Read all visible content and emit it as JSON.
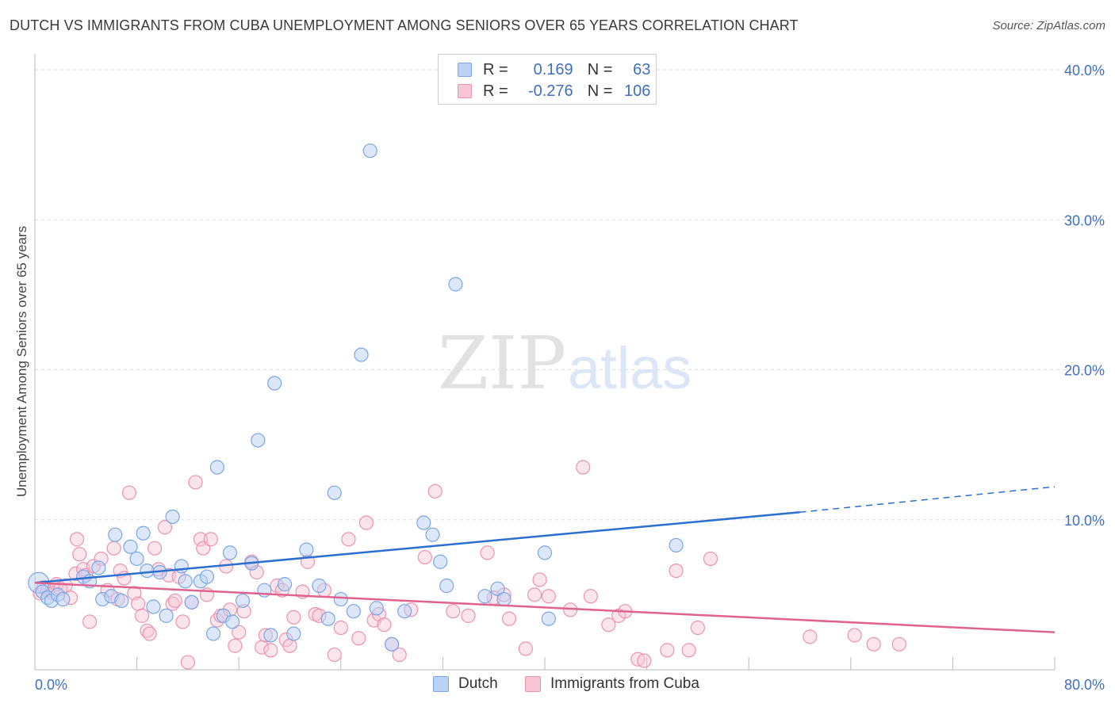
{
  "title": "DUTCH VS IMMIGRANTS FROM CUBA UNEMPLOYMENT AMONG SENIORS OVER 65 YEARS CORRELATION CHART",
  "source": "Source: ZipAtlas.com",
  "watermark": {
    "zip": "ZIP",
    "atlas": "atlas"
  },
  "colors": {
    "dutch_fill": "#b9d2f5",
    "dutch_stroke": "#7aa5e6",
    "dutch_line": "#2b6fd1",
    "cuba_fill": "#f7c6d5",
    "cuba_stroke": "#eb92b0",
    "cuba_line": "#e0628f",
    "axis_text": "#3f6fbf",
    "grid": "#dddddd"
  },
  "legend": {
    "rows": [
      {
        "r_label": "R =",
        "r_value": "0.169",
        "n_label": "N =",
        "n_value": "63",
        "series": "Dutch"
      },
      {
        "r_label": "R =",
        "r_value": "-0.276",
        "n_label": "N =",
        "n_value": "106",
        "series": "Immigrants from Cuba"
      }
    ]
  },
  "chart_data": {
    "type": "scatter",
    "title": "DUTCH VS IMMIGRANTS FROM CUBA UNEMPLOYMENT AMONG SENIORS OVER 65 YEARS CORRELATION CHART",
    "xlabel": "",
    "ylabel": "Unemployment Among Seniors over 65 years",
    "xlim": [
      0,
      80
    ],
    "ylim": [
      0,
      40
    ],
    "x_tick_labels": [
      "0.0%",
      "80.0%"
    ],
    "y_tick_values": [
      10,
      20,
      30,
      40
    ],
    "y_tick_labels": [
      "10.0%",
      "20.0%",
      "30.0%",
      "40.0%"
    ],
    "grid": true,
    "legend_position": "bottom",
    "series": [
      {
        "name": "Dutch",
        "trend": {
          "x0": 0,
          "y0": 5.8,
          "x1": 60,
          "y1": 10.5,
          "dashed_to_x": 80,
          "dashed_to_y": 12.2
        },
        "points": [
          [
            0.3,
            5.8
          ],
          [
            0.6,
            5.2
          ],
          [
            1.0,
            4.8
          ],
          [
            1.3,
            4.6
          ],
          [
            1.8,
            5.0
          ],
          [
            2.2,
            4.7
          ],
          [
            3.8,
            6.2
          ],
          [
            4.3,
            5.9
          ],
          [
            5.0,
            6.8
          ],
          [
            5.3,
            4.7
          ],
          [
            6.0,
            4.9
          ],
          [
            6.3,
            9.0
          ],
          [
            6.8,
            4.6
          ],
          [
            7.5,
            8.2
          ],
          [
            8.0,
            7.4
          ],
          [
            8.5,
            9.1
          ],
          [
            8.8,
            6.6
          ],
          [
            9.3,
            4.2
          ],
          [
            9.8,
            6.5
          ],
          [
            10.3,
            3.6
          ],
          [
            10.8,
            10.2
          ],
          [
            11.5,
            6.9
          ],
          [
            11.8,
            5.9
          ],
          [
            12.3,
            4.5
          ],
          [
            13.0,
            5.9
          ],
          [
            13.5,
            6.2
          ],
          [
            14.0,
            2.4
          ],
          [
            14.3,
            13.5
          ],
          [
            14.8,
            3.6
          ],
          [
            15.5,
            3.2
          ],
          [
            15.3,
            7.8
          ],
          [
            16.3,
            4.6
          ],
          [
            17.0,
            7.1
          ],
          [
            17.5,
            15.3
          ],
          [
            18.0,
            5.3
          ],
          [
            18.5,
            2.3
          ],
          [
            18.8,
            19.1
          ],
          [
            19.6,
            5.7
          ],
          [
            20.3,
            2.4
          ],
          [
            21.3,
            8.0
          ],
          [
            22.3,
            5.6
          ],
          [
            23.0,
            3.4
          ],
          [
            23.5,
            11.8
          ],
          [
            24.0,
            4.7
          ],
          [
            25.0,
            3.9
          ],
          [
            25.6,
            21.0
          ],
          [
            26.3,
            34.6
          ],
          [
            26.8,
            4.1
          ],
          [
            28.0,
            1.7
          ],
          [
            29.0,
            3.9
          ],
          [
            30.5,
            9.8
          ],
          [
            31.2,
            9.0
          ],
          [
            31.8,
            7.2
          ],
          [
            32.3,
            5.6
          ],
          [
            33.0,
            25.7
          ],
          [
            35.3,
            4.9
          ],
          [
            36.3,
            5.4
          ],
          [
            36.8,
            4.7
          ],
          [
            40.0,
            7.8
          ],
          [
            40.3,
            3.4
          ],
          [
            50.3,
            8.3
          ]
        ]
      },
      {
        "name": "Immigrants from Cuba",
        "trend": {
          "x0": 0,
          "y0": 5.8,
          "x1": 80,
          "y1": 2.5
        },
        "points": [
          [
            0.4,
            5.1
          ],
          [
            0.7,
            5.5
          ],
          [
            1.0,
            5.3
          ],
          [
            1.4,
            5.1
          ],
          [
            1.7,
            5.7
          ],
          [
            2.0,
            5.4
          ],
          [
            2.4,
            5.6
          ],
          [
            2.8,
            4.8
          ],
          [
            3.2,
            6.4
          ],
          [
            3.3,
            8.7
          ],
          [
            3.5,
            7.7
          ],
          [
            3.8,
            6.7
          ],
          [
            4.0,
            6.3
          ],
          [
            4.6,
            6.9
          ],
          [
            4.3,
            3.2
          ],
          [
            5.2,
            7.4
          ],
          [
            5.7,
            5.3
          ],
          [
            6.2,
            8.1
          ],
          [
            6.5,
            4.7
          ],
          [
            6.7,
            6.6
          ],
          [
            7.0,
            6.1
          ],
          [
            7.4,
            11.8
          ],
          [
            7.8,
            5.1
          ],
          [
            8.1,
            4.4
          ],
          [
            8.4,
            3.6
          ],
          [
            8.8,
            2.6
          ],
          [
            9.0,
            2.4
          ],
          [
            9.4,
            8.1
          ],
          [
            9.7,
            6.7
          ],
          [
            10.2,
            9.5
          ],
          [
            10.5,
            6.3
          ],
          [
            10.8,
            4.4
          ],
          [
            11.0,
            4.6
          ],
          [
            11.3,
            6.2
          ],
          [
            11.6,
            3.2
          ],
          [
            12.0,
            0.5
          ],
          [
            12.3,
            4.5
          ],
          [
            12.6,
            12.5
          ],
          [
            13.0,
            8.7
          ],
          [
            13.2,
            8.1
          ],
          [
            13.5,
            5.0
          ],
          [
            13.8,
            8.7
          ],
          [
            14.3,
            3.3
          ],
          [
            14.6,
            3.6
          ],
          [
            15.0,
            6.9
          ],
          [
            15.3,
            4.0
          ],
          [
            15.7,
            1.6
          ],
          [
            16.0,
            2.5
          ],
          [
            16.4,
            3.9
          ],
          [
            17.0,
            7.2
          ],
          [
            17.4,
            6.5
          ],
          [
            17.8,
            1.5
          ],
          [
            18.1,
            2.3
          ],
          [
            18.5,
            1.3
          ],
          [
            19.0,
            5.6
          ],
          [
            19.4,
            5.3
          ],
          [
            19.7,
            2.0
          ],
          [
            20.0,
            1.6
          ],
          [
            20.3,
            3.5
          ],
          [
            21.0,
            5.2
          ],
          [
            21.4,
            7.2
          ],
          [
            22.0,
            3.7
          ],
          [
            22.3,
            3.6
          ],
          [
            22.7,
            5.3
          ],
          [
            23.5,
            1.0
          ],
          [
            24.0,
            2.8
          ],
          [
            24.6,
            8.7
          ],
          [
            25.4,
            2.1
          ],
          [
            26.0,
            9.8
          ],
          [
            26.6,
            3.3
          ],
          [
            27.0,
            3.7
          ],
          [
            27.4,
            3.0
          ],
          [
            28.0,
            1.7
          ],
          [
            28.6,
            1.0
          ],
          [
            29.5,
            4.0
          ],
          [
            30.6,
            7.5
          ],
          [
            31.4,
            11.9
          ],
          [
            32.8,
            3.9
          ],
          [
            34.0,
            3.6
          ],
          [
            35.5,
            7.8
          ],
          [
            36.0,
            4.8
          ],
          [
            36.8,
            5.0
          ],
          [
            37.2,
            3.4
          ],
          [
            38.5,
            1.4
          ],
          [
            39.2,
            5.0
          ],
          [
            39.6,
            6.0
          ],
          [
            40.3,
            4.9
          ],
          [
            42.0,
            4.0
          ],
          [
            43.0,
            13.5
          ],
          [
            43.6,
            4.9
          ],
          [
            45.0,
            3.0
          ],
          [
            45.8,
            3.6
          ],
          [
            46.3,
            3.9
          ],
          [
            47.3,
            0.7
          ],
          [
            47.8,
            0.6
          ],
          [
            49.6,
            1.3
          ],
          [
            50.3,
            6.6
          ],
          [
            51.3,
            1.3
          ],
          [
            52.0,
            2.8
          ],
          [
            53.0,
            7.4
          ],
          [
            60.8,
            2.2
          ],
          [
            64.3,
            2.3
          ],
          [
            65.8,
            1.7
          ],
          [
            67.8,
            1.7
          ]
        ]
      }
    ]
  }
}
